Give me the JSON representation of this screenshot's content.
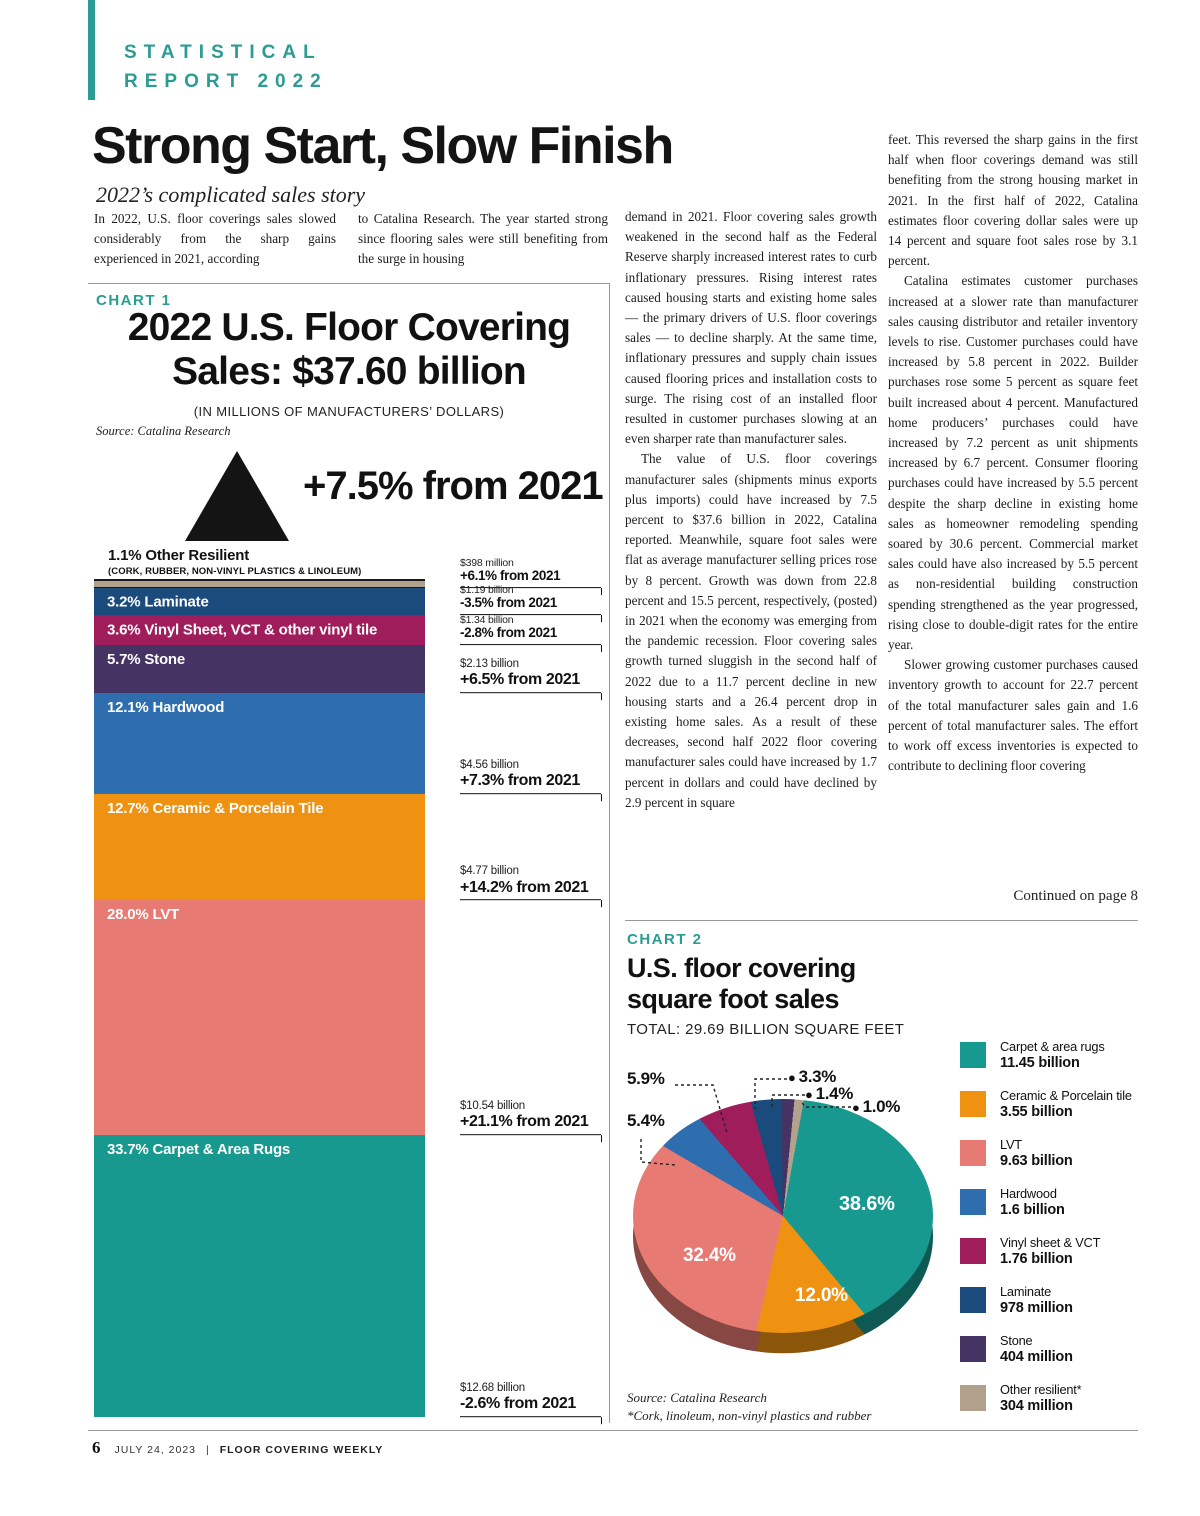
{
  "colors": {
    "accent_teal": "#2b9c93"
  },
  "page": {
    "badge_line1": "STATISTICAL",
    "badge_line2": "REPORT 2022",
    "title": "Strong Start, Slow Finish",
    "subtitle": "2022’s complicated sales story",
    "continued": "Continued on page 8",
    "footer": {
      "page_no": "6",
      "date": "JULY 24, 2023",
      "sep": "|",
      "publication": "FLOOR COVERING WEEKLY"
    }
  },
  "article": {
    "col1": "In 2022, U.S. floor coverings sales slowed considerably from the sharp gains experienced in 2021, according",
    "col2": "to Catalina Research. The year started strong since flooring sales were still benefiting from the surge in housing",
    "col3_p1": "demand in 2021. Floor covering sales growth weakened in the second half as the Federal Reserve sharply increased interest rates to curb inflationary pressures. Rising interest rates caused housing starts and existing home sales — the primary drivers of U.S. floor coverings sales — to decline sharply. At the same time, inflationary pressures and supply chain issues caused flooring prices and installation costs to surge. The rising cost of an installed floor resulted in customer purchases slowing at an even sharper rate than manufacturer sales.",
    "col3_p2": "The value of U.S. floor coverings manufacturer sales (shipments minus exports plus imports) could have increased by 7.5 percent to $37.6 billion in 2022, Catalina reported. Meanwhile, square foot sales were flat as average manufacturer selling prices rose by 8 percent. Growth was down from 22.8 percent and 15.5 percent, respectively, (posted) in 2021 when the economy was emerging from the pandemic recession. Floor covering sales growth turned sluggish in the second half of 2022 due to a 11.7 percent decline in new housing starts and a 26.4 percent drop in existing home sales. As a result of these decreases, second half 2022 floor covering manufacturer sales could have increased by 1.7 percent in dollars and could have declined by 2.9 percent in square",
    "col4_p1": "feet. This reversed the sharp gains in the first half when floor coverings demand was still benefiting from the strong housing market in 2021. In the first half of 2022, Catalina estimates floor covering dollar sales were up 14 percent and square foot sales rose by 3.1 percent.",
    "col4_p2": "Catalina estimates customer purchases increased at a slower rate than manufacturer sales causing distributor and retailer inventory levels to rise. Customer purchases could have increased by 5.8 percent in 2022. Builder purchases rose some 5 percent as square feet built increased about 4 percent. Manufactured home producers’ purchases could have increased by 7.2 percent as unit shipments increased by 6.7 percent. Consumer flooring purchases could have increased by 5.5 percent despite the sharp decline in existing home sales as homeowner remodeling spending soared by 30.6 percent. Commercial market sales could have also increased by 5.5 percent as non-residential building construction spending strengthened as the year progressed, rising close to double-digit rates for the entire year.",
    "col4_p3": "Slower growing customer purchases caused inventory growth to account for 22.7 percent of the total manufacturer sales gain and 1.6 percent of total manufacturer sales. The effort to work off excess inventories is expected to contribute to declining floor covering"
  },
  "chart1": {
    "label": "CHART 1",
    "title_line1": "2022 U.S. Floor Covering",
    "title_line2": "Sales: $37.60 billion",
    "units": "(IN MILLIONS OF MANUFACTURERS’ DOLLARS)",
    "source": "Source: Catalina Research",
    "growth_callout": "+7.5% from 2021",
    "top_segment_sublabel": "(CORK, RUBBER, NON-VINYL PLASTICS & LINOLEUM)"
  },
  "chart2": {
    "label": "CHART 2",
    "title_line1": "U.S. floor covering",
    "title_line2": "square foot sales",
    "total": "TOTAL: 29.69 BILLION SQUARE FEET",
    "source": "Source: Catalina Research",
    "footnote": "*Cork, linoleum, non-vinyl plastics and rubber"
  },
  "chart_data": [
    {
      "type": "bar",
      "title": "2022 U.S. Floor Covering Sales: $37.60 billion",
      "units": "millions of manufacturers’ dollars",
      "total_change_from_2021": "+7.5%",
      "segments": [
        {
          "category": "Other Resilient",
          "label": "1.1% Other Resilient",
          "share_pct": 1.1,
          "value": "$398 million",
          "change": "+6.1% from 2021",
          "color": "#b2a28c"
        },
        {
          "category": "Laminate",
          "label": "3.2% Laminate",
          "share_pct": 3.2,
          "value": "$1.19 billion",
          "change": "-3.5% from 2021",
          "color": "#1b4a7c"
        },
        {
          "category": "Vinyl Sheet, VCT & other vinyl tile",
          "label": "3.6% Vinyl Sheet, VCT & other vinyl tile",
          "share_pct": 3.6,
          "value": "$1.34 billion",
          "change": "-2.8% from 2021",
          "color": "#a01d5c"
        },
        {
          "category": "Stone",
          "label": "5.7% Stone",
          "share_pct": 5.7,
          "value": "$2.13 billion",
          "change": "+6.5% from 2021",
          "color": "#453364"
        },
        {
          "category": "Hardwood",
          "label": "12.1% Hardwood",
          "share_pct": 12.1,
          "value": "$4.56 billion",
          "change": "+7.3% from 2021",
          "color": "#2e6dae"
        },
        {
          "category": "Ceramic & Porcelain Tile",
          "label": "12.7% Ceramic & Porcelain Tile",
          "share_pct": 12.7,
          "value": "$4.77 billion",
          "change": "+14.2% from 2021",
          "color": "#ef9212"
        },
        {
          "category": "LVT",
          "label": "28.0% LVT",
          "share_pct": 28.0,
          "value": "$10.54 billion",
          "change": "+21.1% from 2021",
          "color": "#e87a74"
        },
        {
          "category": "Carpet & Area Rugs",
          "label": "33.7% Carpet & Area Rugs",
          "share_pct": 33.7,
          "value": "$12.68 billion",
          "change": "-2.6% from 2021",
          "color": "#18998f"
        }
      ]
    },
    {
      "type": "pie",
      "title": "U.S. floor covering square foot sales",
      "total": "29.69 billion square feet",
      "slices": [
        {
          "name": "Carpet & area rugs",
          "value": "11.45 billion",
          "pct": 38.6,
          "pct_label": "38.6%",
          "color": "#18998f"
        },
        {
          "name": "Ceramic & Porcelain tile",
          "value": "3.55 billion",
          "pct": 12.0,
          "pct_label": "12.0%",
          "color": "#ef9212"
        },
        {
          "name": "LVT",
          "value": "9.63 billion",
          "pct": 32.4,
          "pct_label": "32.4%",
          "color": "#e87a74"
        },
        {
          "name": "Hardwood",
          "value": "1.6 billion",
          "pct": 5.4,
          "pct_label": "5.4%",
          "color": "#2e6dae"
        },
        {
          "name": "Vinyl sheet & VCT",
          "value": "1.76 billion",
          "pct": 5.9,
          "pct_label": "5.9%",
          "color": "#a01d5c"
        },
        {
          "name": "Laminate",
          "value": "978 million",
          "pct": 3.3,
          "pct_label": "3.3%",
          "color": "#1b4a7c"
        },
        {
          "name": "Stone",
          "value": "404 million",
          "pct": 1.4,
          "pct_label": "1.4%",
          "color": "#453364"
        },
        {
          "name": "Other resilient*",
          "value": "304 million",
          "pct": 1.0,
          "pct_label": "1.0%",
          "color": "#b2a28c"
        }
      ],
      "legend_position": "right"
    }
  ]
}
